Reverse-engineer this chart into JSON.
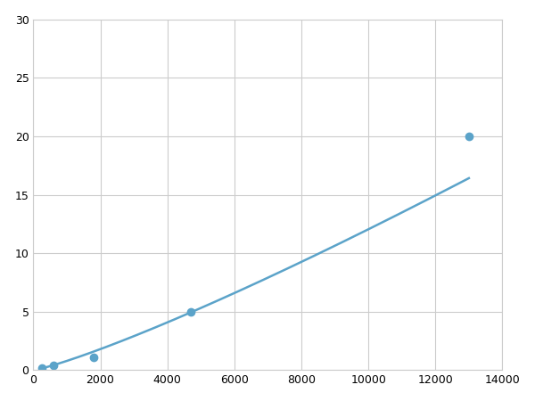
{
  "x_points": [
    250,
    600,
    1800,
    4700,
    13000
  ],
  "y_points": [
    0.2,
    0.4,
    1.1,
    5.0,
    20.0
  ],
  "line_color": "#5BA3C9",
  "marker_color": "#5BA3C9",
  "marker_size": 6,
  "line_width": 1.8,
  "xlim": [
    0,
    14000
  ],
  "ylim": [
    0,
    30
  ],
  "xticks": [
    0,
    2000,
    4000,
    6000,
    8000,
    10000,
    12000,
    14000
  ],
  "yticks": [
    0,
    5,
    10,
    15,
    20,
    25,
    30
  ],
  "grid_color": "#cccccc",
  "background_color": "#ffffff",
  "spine_color": "#cccccc"
}
